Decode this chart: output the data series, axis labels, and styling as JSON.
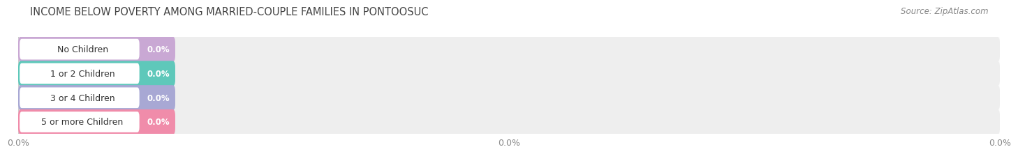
{
  "title": "INCOME BELOW POVERTY AMONG MARRIED-COUPLE FAMILIES IN PONTOOSUC",
  "source": "Source: ZipAtlas.com",
  "categories": [
    "No Children",
    "1 or 2 Children",
    "3 or 4 Children",
    "5 or more Children"
  ],
  "values": [
    0.0,
    0.0,
    0.0,
    0.0
  ],
  "bar_colors": [
    "#c9a8d4",
    "#5ec8ba",
    "#a8a8d4",
    "#f08caa"
  ],
  "bar_bg_color": "#eeeeee",
  "background_color": "#ffffff",
  "title_fontsize": 10.5,
  "label_fontsize": 9,
  "value_fontsize": 8.5,
  "source_fontsize": 8.5,
  "xtick_positions": [
    0,
    50,
    100
  ],
  "xtick_labels": [
    "0.0%",
    "0.0%",
    "0.0%"
  ]
}
